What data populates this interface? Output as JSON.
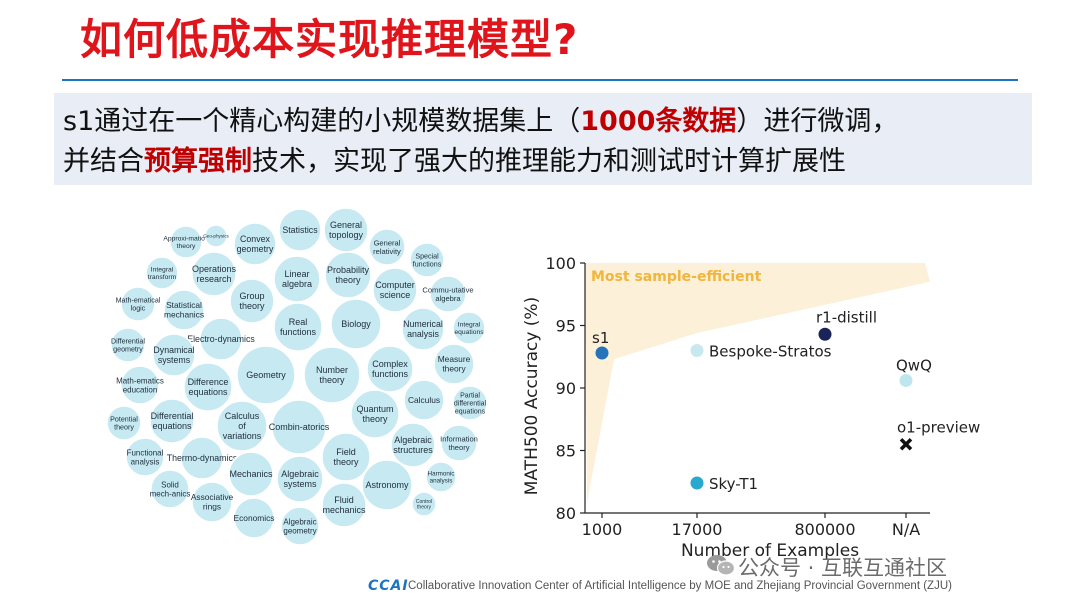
{
  "slide": {
    "title": "如何低成本实现推理模型?",
    "summary": {
      "line1_a": "s1通过在一个精心构建的小规模数据集上（",
      "line1_highlight": "1000条数据",
      "line1_b": "）进行微调，",
      "line2_a": "并结合",
      "line2_highlight": "预算强制",
      "line2_b": "技术，实现了强大的推理能力和测试时计算扩展性"
    }
  },
  "topic_bubbles": [
    "Approxi-mation theory",
    "Geo-physics",
    "Convex geometry",
    "Statistics",
    "General topology",
    "General relativity",
    "Special functions",
    "Integral transform",
    "Operations research",
    "Linear algebra",
    "Probability theory",
    "Computer science",
    "Commu-utative algebra",
    "Math-ematical logic",
    "Statistical mechanics",
    "Group theory",
    "Real functions",
    "Biology",
    "Numerical analysis",
    "Integral equations",
    "Differential geometry",
    "Electro-dynamics",
    "Dynamical systems",
    "Geometry",
    "Number theory",
    "Complex functions",
    "Measure theory",
    "Math-ematics education",
    "Difference equations",
    "Quantum theory",
    "Calculus",
    "Partial differential equations",
    "Potential theory",
    "Differential equations",
    "Calculus of variations",
    "Combin-atorics",
    "Field theory",
    "Algebraic structures",
    "Information theory",
    "Functional analysis",
    "Thermo-dynamics",
    "Mechanics",
    "Algebraic systems",
    "Astronomy",
    "Harmonic analysis",
    "Solid mech-anics",
    "Associative rings",
    "Fluid mechanics",
    "Control theory",
    "Economics",
    "Algebraic geometry"
  ],
  "chart_data": {
    "type": "scatter",
    "title": "",
    "xlabel": "Number of Examples",
    "ylabel": "MATH500 Accuracy (%)",
    "categories": [
      "1000",
      "17000",
      "800000",
      "N/A"
    ],
    "ylim": [
      80,
      100
    ],
    "yticks": [
      80,
      85,
      90,
      95,
      100
    ],
    "region_label": "Most sample-efficient",
    "points": [
      {
        "name": "s1",
        "x": "1000",
        "y": 92.8,
        "color": "#2573b8",
        "marker": "circle"
      },
      {
        "name": "Bespoke-Stratos",
        "x": "17000",
        "y": 93.0,
        "color": "#c8e8f0",
        "marker": "circle"
      },
      {
        "name": "Sky-T1",
        "x": "17000",
        "y": 82.4,
        "color": "#2aa9cf",
        "marker": "circle"
      },
      {
        "name": "r1-distill",
        "x": "800000",
        "y": 94.3,
        "color": "#1a2458",
        "marker": "circle"
      },
      {
        "name": "QwQ",
        "x": "N/A",
        "y": 90.6,
        "color": "#bfe6ee",
        "marker": "circle"
      },
      {
        "name": "o1-preview",
        "x": "N/A",
        "y": 85.5,
        "color": "#111111",
        "marker": "x"
      }
    ]
  },
  "footer": {
    "logo": "CCAI",
    "text": "Collaborative Innovation Center of Artificial Intelligence by MOE and Zhejiang Provincial Government (ZJU)"
  },
  "watermark": {
    "text": "公众号 · 互联互通社区"
  },
  "colors": {
    "title": "#e0141b",
    "rule": "#1e73be",
    "highlight": "#c00000",
    "bubble_fill": "#c6e9f2",
    "region_fill": "#fdf0d9",
    "region_label": "#f0b63c"
  }
}
